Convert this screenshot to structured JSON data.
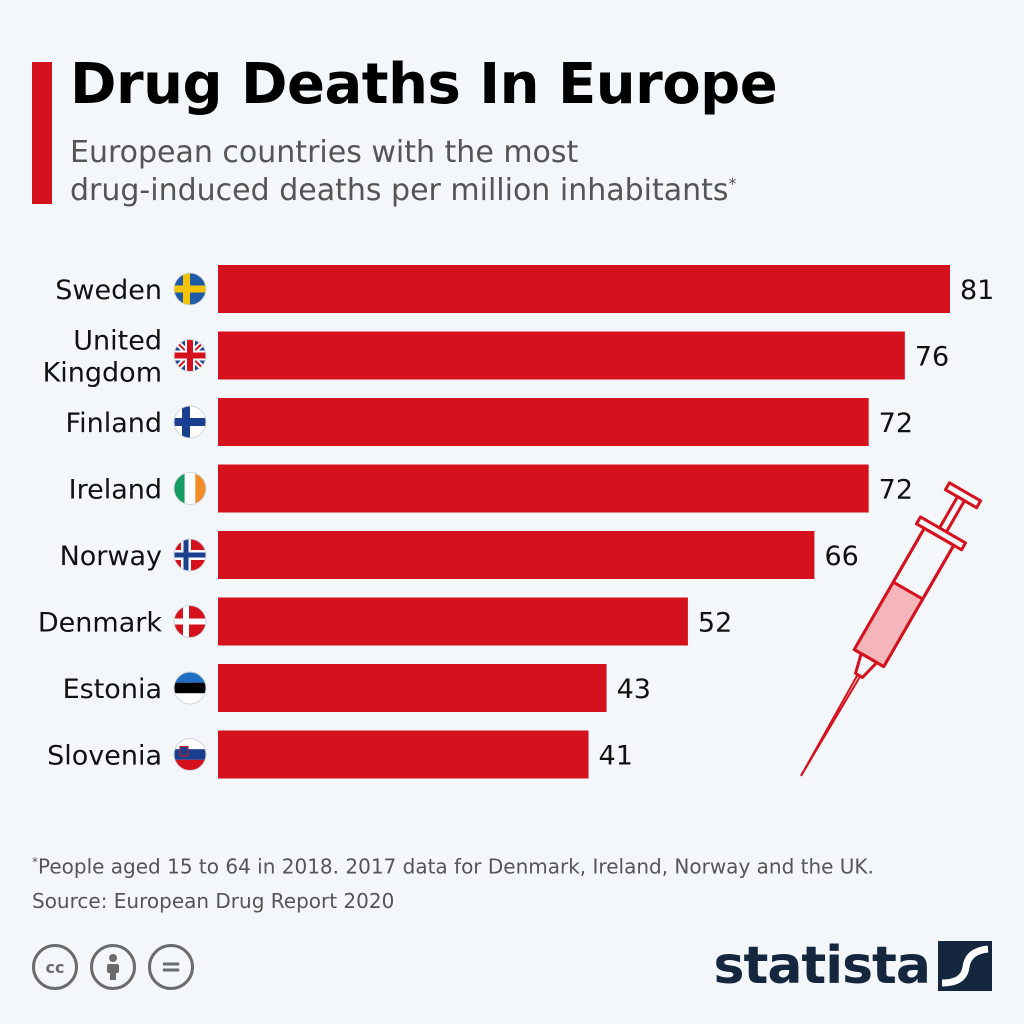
{
  "header": {
    "title": "Drug Deaths In Europe",
    "subtitle_line1": "European countries with the most",
    "subtitle_line2": "drug-induced deaths per million inhabitants",
    "subtitle_marker": "*"
  },
  "chart_data": {
    "type": "bar",
    "orientation": "horizontal",
    "title": "Drug Deaths In Europe",
    "subtitle": "European countries with the most drug-induced deaths per million inhabitants*",
    "categories": [
      "Sweden",
      "United Kingdom",
      "Finland",
      "Ireland",
      "Norway",
      "Denmark",
      "Estonia",
      "Slovenia"
    ],
    "category_lines": [
      [
        "Sweden"
      ],
      [
        "United",
        "Kingdom"
      ],
      [
        "Finland"
      ],
      [
        "Ireland"
      ],
      [
        "Norway"
      ],
      [
        "Denmark"
      ],
      [
        "Estonia"
      ],
      [
        "Slovenia"
      ]
    ],
    "flag_icons": [
      "sweden-flag-icon",
      "uk-flag-icon",
      "finland-flag-icon",
      "ireland-flag-icon",
      "norway-flag-icon",
      "denmark-flag-icon",
      "estonia-flag-icon",
      "slovenia-flag-icon"
    ],
    "values": [
      81,
      76,
      72,
      72,
      66,
      52,
      43,
      41
    ],
    "xlim": [
      0,
      81
    ],
    "xlabel": "",
    "ylabel": "",
    "grid": false,
    "bar_color": "#d6111e"
  },
  "decoration": {
    "icon": "syringe-icon"
  },
  "footer": {
    "footnote_marker": "*",
    "footnote": "People aged 15 to 64 in 2018. 2017 data for Denmark, Ireland, Norway and the UK.",
    "source": "Source: European Drug Report 2020",
    "cc_label": "cc",
    "eq_label": "=",
    "brand": "statista"
  },
  "colors": {
    "accent": "#d6111e",
    "brand": "#14273f",
    "text_muted": "#555555"
  }
}
